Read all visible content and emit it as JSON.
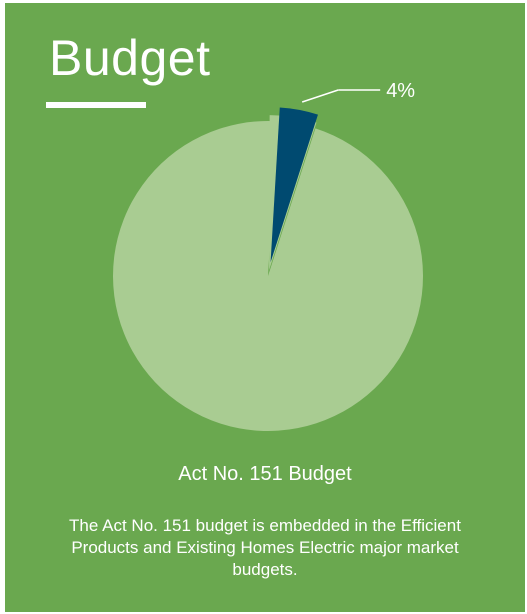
{
  "colors": {
    "background": "#6aa84f",
    "slice_main": "#a9cc92",
    "slice_highlight": "#004a70",
    "text": "#ffffff"
  },
  "header": {
    "title": "Budget"
  },
  "caption": {
    "title": "Act No. 151 Budget",
    "body": "The Act No. 151 budget is embedded in the Efficient Products and Existing Homes Electric major market budgets."
  },
  "chart_data": {
    "type": "pie",
    "slices": [
      {
        "value": 4,
        "label": "4%",
        "color": "#004a70"
      },
      {
        "value": 96,
        "label": "",
        "color": "#a9cc92"
      }
    ]
  }
}
